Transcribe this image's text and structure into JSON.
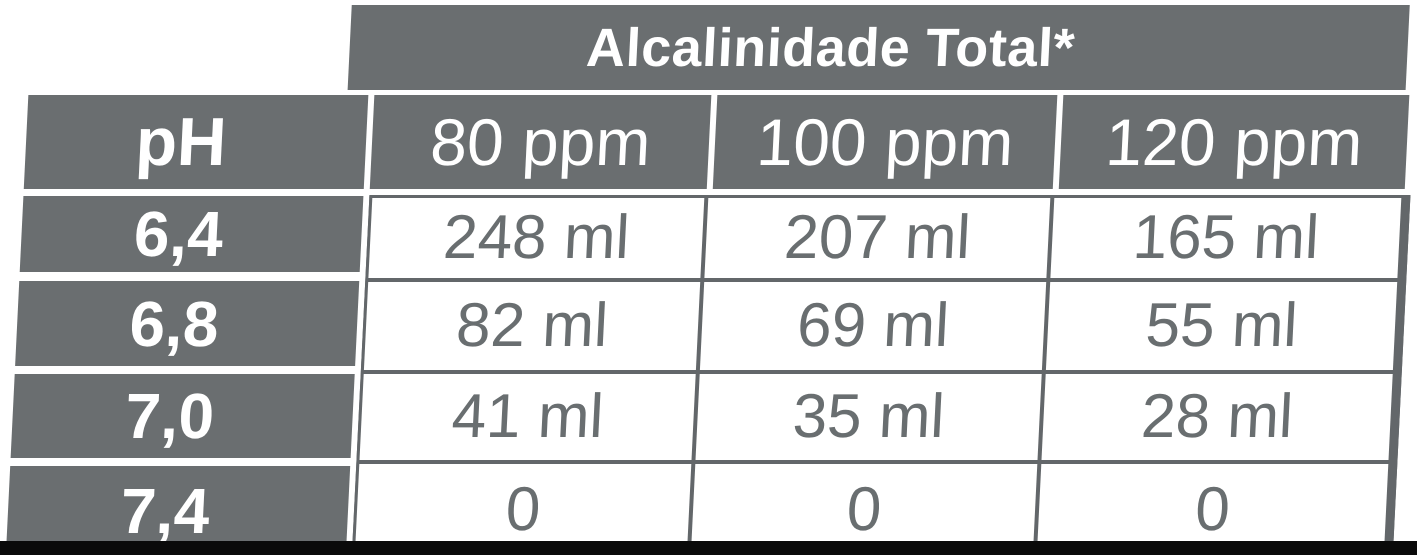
{
  "table": {
    "title": "Alcalinidade Total*",
    "corner_label": "pH",
    "column_headers": [
      "80 ppm",
      "100 ppm",
      "120 ppm"
    ],
    "rows": [
      {
        "ph": "6,4",
        "values": [
          "248 ml",
          "207 ml",
          "165 ml"
        ]
      },
      {
        "ph": "6,8",
        "values": [
          "82 ml",
          "69 ml",
          "55 ml"
        ]
      },
      {
        "ph": "7,0",
        "values": [
          "41 ml",
          "35 ml",
          "28 ml"
        ]
      },
      {
        "ph": "7,4",
        "values": [
          "0",
          "0",
          "0"
        ]
      }
    ]
  },
  "chart_data": {
    "type": "table",
    "title": "Alcalinidade Total*",
    "row_label": "pH",
    "categories": [
      "80 ppm",
      "100 ppm",
      "120 ppm"
    ],
    "series": [
      {
        "name": "6,4",
        "values": [
          "248 ml",
          "207 ml",
          "165 ml"
        ]
      },
      {
        "name": "6,8",
        "values": [
          "82 ml",
          "69 ml",
          "55 ml"
        ]
      },
      {
        "name": "7,0",
        "values": [
          "41 ml",
          "35 ml",
          "28 ml"
        ]
      },
      {
        "name": "7,4",
        "values": [
          "0",
          "0",
          "0"
        ]
      }
    ]
  },
  "colors": {
    "header_fill": "#6a6e70",
    "header_text": "#ffffff",
    "data_text": "#696e70",
    "grid_line": "#63676a",
    "bottom_bar": "#0a0a0a",
    "background": "#ffffff"
  }
}
